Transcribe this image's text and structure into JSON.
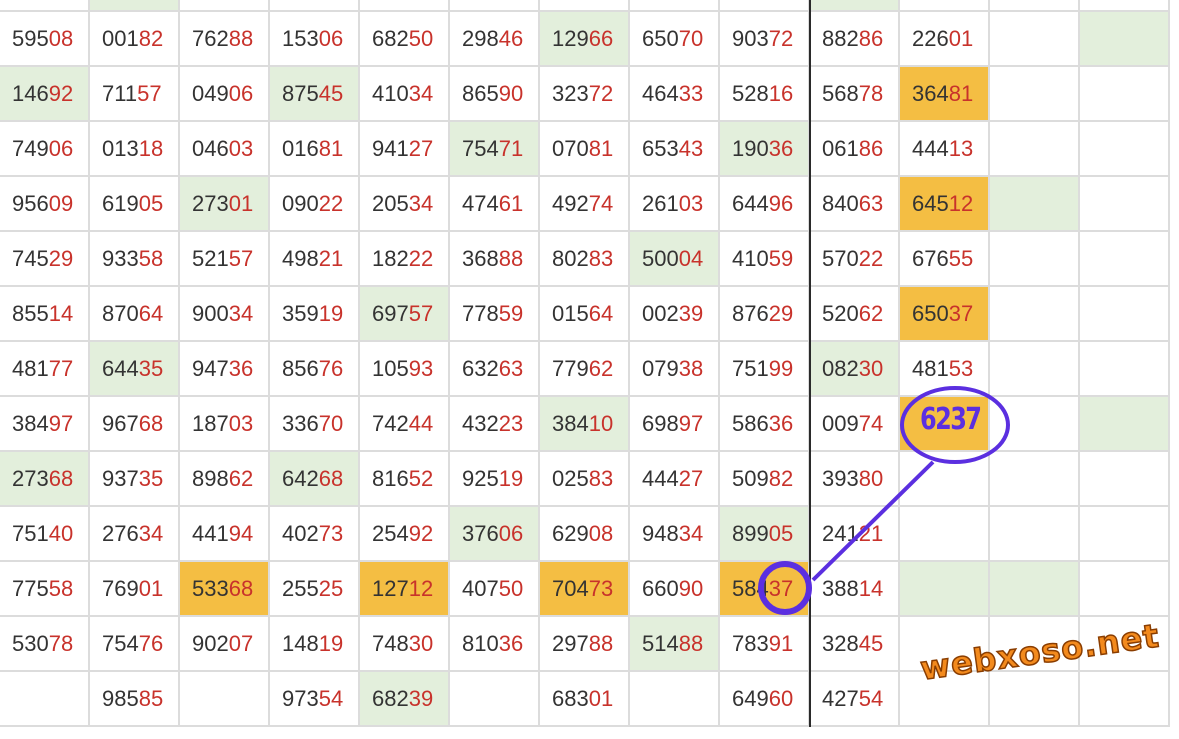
{
  "watermark": "webxoso.net",
  "annotation": {
    "handwritten_text": "6237",
    "ink_color": "#5b2fe0"
  },
  "colors": {
    "highlight_green": "#e3efdc",
    "highlight_orange": "#f4be43",
    "tail_digits": "#c8322b",
    "text": "#333333"
  },
  "rows": [
    {
      "cells": [
        [
          "",
          ""
        ],
        [
          "",
          "g"
        ],
        [
          "",
          ""
        ],
        [
          "",
          ""
        ],
        [
          "",
          ""
        ],
        [
          "",
          ""
        ],
        [
          "",
          ""
        ],
        [
          "",
          ""
        ],
        [
          "",
          ""
        ],
        [
          "",
          "g"
        ],
        [
          "",
          ""
        ],
        [
          "",
          ""
        ],
        [
          "",
          ""
        ]
      ]
    },
    {
      "cells": [
        [
          "59508",
          ""
        ],
        [
          "00182",
          ""
        ],
        [
          "76288",
          ""
        ],
        [
          "15306",
          ""
        ],
        [
          "68250",
          ""
        ],
        [
          "29846",
          ""
        ],
        [
          "12966",
          "g"
        ],
        [
          "65070",
          ""
        ],
        [
          "90372",
          ""
        ],
        [
          "88286",
          ""
        ],
        [
          "22601",
          ""
        ],
        [
          "",
          ""
        ],
        [
          "",
          "g"
        ]
      ]
    },
    {
      "cells": [
        [
          "14692",
          "g"
        ],
        [
          "71157",
          ""
        ],
        [
          "04906",
          ""
        ],
        [
          "87545",
          "g"
        ],
        [
          "41034",
          ""
        ],
        [
          "86590",
          ""
        ],
        [
          "32372",
          ""
        ],
        [
          "46433",
          ""
        ],
        [
          "52816",
          ""
        ],
        [
          "56878",
          ""
        ],
        [
          "36481",
          "o"
        ],
        [
          "",
          ""
        ],
        [
          "",
          ""
        ]
      ]
    },
    {
      "cells": [
        [
          "74906",
          ""
        ],
        [
          "01318",
          ""
        ],
        [
          "04603",
          ""
        ],
        [
          "01681",
          ""
        ],
        [
          "94127",
          ""
        ],
        [
          "75471",
          "g"
        ],
        [
          "07081",
          ""
        ],
        [
          "65343",
          ""
        ],
        [
          "19036",
          "g"
        ],
        [
          "06186",
          ""
        ],
        [
          "44413",
          ""
        ],
        [
          "",
          ""
        ],
        [
          "",
          ""
        ]
      ]
    },
    {
      "cells": [
        [
          "95609",
          ""
        ],
        [
          "61905",
          ""
        ],
        [
          "27301",
          "g"
        ],
        [
          "09022",
          ""
        ],
        [
          "20534",
          ""
        ],
        [
          "47461",
          ""
        ],
        [
          "49274",
          ""
        ],
        [
          "26103",
          ""
        ],
        [
          "64496",
          ""
        ],
        [
          "84063",
          ""
        ],
        [
          "64512",
          "o"
        ],
        [
          "",
          "g"
        ],
        [
          "",
          ""
        ]
      ]
    },
    {
      "cells": [
        [
          "74529",
          ""
        ],
        [
          "93358",
          ""
        ],
        [
          "52157",
          ""
        ],
        [
          "49821",
          ""
        ],
        [
          "18222",
          ""
        ],
        [
          "36888",
          ""
        ],
        [
          "80283",
          ""
        ],
        [
          "50004",
          "g"
        ],
        [
          "41059",
          ""
        ],
        [
          "57022",
          ""
        ],
        [
          "67655",
          ""
        ],
        [
          "",
          ""
        ],
        [
          "",
          ""
        ]
      ]
    },
    {
      "cells": [
        [
          "85514",
          ""
        ],
        [
          "87064",
          ""
        ],
        [
          "90034",
          ""
        ],
        [
          "35919",
          ""
        ],
        [
          "69757",
          "g"
        ],
        [
          "77859",
          ""
        ],
        [
          "01564",
          ""
        ],
        [
          "00239",
          ""
        ],
        [
          "87629",
          ""
        ],
        [
          "52062",
          ""
        ],
        [
          "65037",
          "o"
        ],
        [
          "",
          ""
        ],
        [
          "",
          ""
        ]
      ]
    },
    {
      "cells": [
        [
          "48177",
          ""
        ],
        [
          "64435",
          "g"
        ],
        [
          "94736",
          ""
        ],
        [
          "85676",
          ""
        ],
        [
          "10593",
          ""
        ],
        [
          "63263",
          ""
        ],
        [
          "77962",
          ""
        ],
        [
          "07938",
          ""
        ],
        [
          "75199",
          ""
        ],
        [
          "08230",
          "g"
        ],
        [
          "48153",
          ""
        ],
        [
          "",
          ""
        ],
        [
          "",
          ""
        ]
      ]
    },
    {
      "cells": [
        [
          "38497",
          ""
        ],
        [
          "96768",
          ""
        ],
        [
          "18703",
          ""
        ],
        [
          "33670",
          ""
        ],
        [
          "74244",
          ""
        ],
        [
          "43223",
          ""
        ],
        [
          "38410",
          "g"
        ],
        [
          "69897",
          ""
        ],
        [
          "58636",
          ""
        ],
        [
          "00974",
          ""
        ],
        [
          "",
          "o"
        ],
        [
          "",
          ""
        ],
        [
          "",
          "g"
        ]
      ]
    },
    {
      "cells": [
        [
          "27368",
          "g"
        ],
        [
          "93735",
          ""
        ],
        [
          "89862",
          ""
        ],
        [
          "64268",
          "g"
        ],
        [
          "81652",
          ""
        ],
        [
          "92519",
          ""
        ],
        [
          "02583",
          ""
        ],
        [
          "44427",
          ""
        ],
        [
          "50982",
          ""
        ],
        [
          "39380",
          ""
        ],
        [
          "",
          ""
        ],
        [
          "",
          ""
        ],
        [
          "",
          ""
        ]
      ]
    },
    {
      "cells": [
        [
          "75140",
          ""
        ],
        [
          "27634",
          ""
        ],
        [
          "44194",
          ""
        ],
        [
          "40273",
          ""
        ],
        [
          "25492",
          ""
        ],
        [
          "37606",
          "g"
        ],
        [
          "62908",
          ""
        ],
        [
          "94834",
          ""
        ],
        [
          "89905",
          "g"
        ],
        [
          "24121",
          ""
        ],
        [
          "",
          ""
        ],
        [
          "",
          ""
        ],
        [
          "",
          ""
        ]
      ]
    },
    {
      "cells": [
        [
          "77558",
          ""
        ],
        [
          "76901",
          ""
        ],
        [
          "53368",
          "o"
        ],
        [
          "25525",
          ""
        ],
        [
          "12712",
          "o"
        ],
        [
          "40750",
          ""
        ],
        [
          "70473",
          "o"
        ],
        [
          "66090",
          ""
        ],
        [
          "58437",
          "o"
        ],
        [
          "38814",
          ""
        ],
        [
          "",
          "g"
        ],
        [
          "",
          "g"
        ],
        [
          "",
          ""
        ]
      ]
    },
    {
      "cells": [
        [
          "53078",
          ""
        ],
        [
          "75476",
          ""
        ],
        [
          "90207",
          ""
        ],
        [
          "14819",
          ""
        ],
        [
          "74830",
          ""
        ],
        [
          "81036",
          ""
        ],
        [
          "29788",
          ""
        ],
        [
          "51488",
          "g"
        ],
        [
          "78391",
          ""
        ],
        [
          "32845",
          ""
        ],
        [
          "",
          ""
        ],
        [
          "",
          ""
        ],
        [
          "",
          ""
        ]
      ]
    },
    {
      "cells": [
        [
          "",
          ""
        ],
        [
          "98585",
          ""
        ],
        [
          "",
          ""
        ],
        [
          "97354",
          ""
        ],
        [
          "68239",
          "g"
        ],
        [
          "",
          ""
        ],
        [
          "68301",
          ""
        ],
        [
          "",
          ""
        ],
        [
          "64960",
          ""
        ],
        [
          "42754",
          ""
        ],
        [
          "",
          ""
        ],
        [
          "",
          ""
        ],
        [
          "",
          ""
        ]
      ]
    }
  ]
}
